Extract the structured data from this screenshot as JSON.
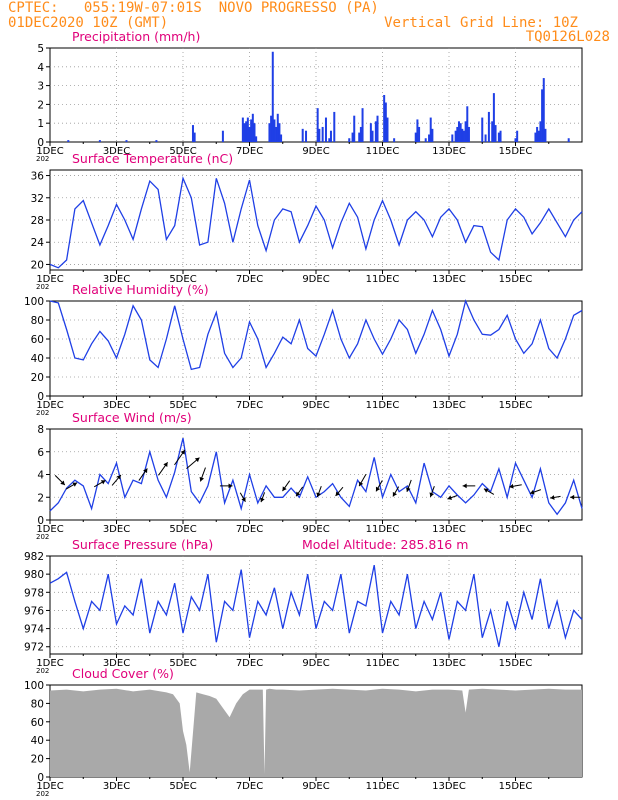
{
  "header": {
    "station": "CPTEC:   055:19W-07:01S  NOVO PROGRESSO (PA)",
    "datetime": "01DEC2020 10Z (GMT)",
    "grid_note": "Vertical Grid Line: 10Z",
    "code": "TQ0126L028"
  },
  "colors": {
    "header": "#ff8c1a",
    "panel_title": "#e0007a",
    "series": "#1f3fe6",
    "cloud": "#a9a9a9",
    "axis": "#000000",
    "grid": "#9a9a9a"
  },
  "x_axis": {
    "ticks": [
      "1DEC",
      "3DEC",
      "5DEC",
      "7DEC",
      "9DEC",
      "11DEC",
      "13DEC",
      "15DEC"
    ],
    "truncated_year": "202"
  },
  "chart_data": [
    {
      "id": "precip",
      "type": "bar",
      "title": "Precipitation  (mm/h)",
      "ylim": [
        0,
        5
      ],
      "yticks": [
        0,
        1,
        2,
        3,
        4,
        5
      ],
      "grid": true,
      "x_days": [
        0.55,
        1.5,
        2.3,
        3.2,
        4.3,
        4.35,
        5.2,
        5.8,
        5.85,
        5.9,
        5.95,
        6.0,
        6.05,
        6.1,
        6.15,
        6.2,
        6.6,
        6.65,
        6.7,
        6.75,
        6.8,
        6.85,
        6.9,
        6.95,
        7.6,
        7.7,
        8.05,
        8.1,
        8.2,
        8.3,
        8.4,
        8.45,
        8.55,
        9.0,
        9.1,
        9.15,
        9.3,
        9.35,
        9.4,
        9.65,
        9.7,
        9.8,
        9.85,
        10.05,
        10.1,
        10.15,
        10.35,
        11.0,
        11.05,
        11.1,
        11.3,
        11.4,
        11.45,
        11.5,
        12.1,
        12.2,
        12.25,
        12.3,
        12.35,
        12.4,
        12.45,
        12.5,
        12.55,
        12.6,
        13.0,
        13.1,
        13.2,
        13.3,
        13.35,
        13.4,
        13.5,
        13.55,
        14.0,
        14.05,
        14.6,
        14.65,
        14.7,
        14.75,
        14.8,
        14.85,
        14.9,
        15.6
      ],
      "values": [
        0.1,
        0.1,
        0.1,
        0.1,
        0.9,
        0.5,
        0.6,
        1.3,
        1.0,
        1.1,
        1.3,
        0.8,
        1.2,
        1.5,
        1.0,
        0.3,
        1.0,
        1.4,
        4.8,
        1.2,
        0.8,
        1.5,
        1.0,
        0.4,
        0.7,
        0.6,
        1.8,
        0.7,
        0.8,
        1.3,
        0.2,
        0.6,
        1.6,
        0.2,
        0.5,
        1.4,
        0.5,
        0.8,
        1.8,
        1.0,
        0.6,
        1.1,
        1.4,
        2.5,
        2.1,
        1.3,
        0.2,
        0.5,
        1.2,
        0.8,
        0.2,
        0.4,
        1.3,
        0.7,
        0.4,
        0.6,
        0.8,
        1.1,
        1.0,
        0.7,
        0.6,
        1.1,
        1.9,
        0.8,
        1.3,
        0.4,
        1.6,
        1.1,
        2.6,
        0.9,
        0.5,
        0.6,
        0.2,
        0.6,
        0.5,
        0.8,
        0.6,
        1.1,
        2.8,
        3.4,
        0.7,
        0.2
      ]
    },
    {
      "id": "temp",
      "type": "line",
      "title": "Surface Temperature (nC)",
      "ylim": [
        19,
        37
      ],
      "yticks": [
        20,
        24,
        28,
        32,
        36
      ],
      "grid": true,
      "x_days": [
        0,
        0.25,
        0.5,
        0.75,
        1.0,
        1.25,
        1.5,
        1.75,
        2.0,
        2.25,
        2.5,
        2.75,
        3.0,
        3.25,
        3.5,
        3.75,
        4.0,
        4.25,
        4.5,
        4.75,
        5.0,
        5.25,
        5.5,
        5.75,
        6.0,
        6.25,
        6.5,
        6.75,
        7.0,
        7.25,
        7.5,
        7.75,
        8.0,
        8.25,
        8.5,
        8.75,
        9.0,
        9.25,
        9.5,
        9.75,
        10.0,
        10.25,
        10.5,
        10.75,
        11.0,
        11.25,
        11.5,
        11.75,
        12.0,
        12.25,
        12.5,
        12.75,
        13.0,
        13.25,
        13.5,
        13.75,
        14.0,
        14.25,
        14.5,
        14.75,
        15.0,
        15.25,
        15.5,
        15.75,
        16.0
      ],
      "values": [
        20.0,
        19.4,
        20.8,
        30.0,
        31.5,
        27.5,
        23.5,
        27.0,
        30.8,
        28.0,
        24.5,
        30.0,
        35.0,
        33.5,
        24.5,
        27.0,
        35.5,
        32.0,
        23.5,
        24.0,
        35.5,
        31.0,
        24.0,
        30.0,
        35.2,
        27.0,
        22.5,
        28.0,
        30.0,
        29.5,
        24.0,
        27.0,
        30.5,
        28.0,
        23.0,
        27.5,
        31.0,
        28.5,
        22.8,
        28.0,
        31.5,
        28.0,
        23.5,
        28.0,
        29.5,
        28.0,
        25.0,
        28.5,
        30.0,
        28.0,
        24.0,
        27.0,
        26.8,
        22.2,
        20.8,
        28.0,
        30.0,
        28.5,
        25.5,
        27.5,
        30.0,
        27.5,
        25.0,
        28.0,
        29.5
      ]
    },
    {
      "id": "rh",
      "type": "line",
      "title": "Relative Humidity (%)",
      "ylim": [
        0,
        100
      ],
      "yticks": [
        0,
        20,
        40,
        60,
        80,
        100
      ],
      "grid": true,
      "x_days": [
        0,
        0.25,
        0.5,
        0.75,
        1.0,
        1.25,
        1.5,
        1.75,
        2.0,
        2.25,
        2.5,
        2.75,
        3.0,
        3.25,
        3.5,
        3.75,
        4.0,
        4.25,
        4.5,
        4.75,
        5.0,
        5.25,
        5.5,
        5.75,
        6.0,
        6.25,
        6.5,
        6.75,
        7.0,
        7.25,
        7.5,
        7.75,
        8.0,
        8.25,
        8.5,
        8.75,
        9.0,
        9.25,
        9.5,
        9.75,
        10.0,
        10.25,
        10.5,
        10.75,
        11.0,
        11.25,
        11.5,
        11.75,
        12.0,
        12.25,
        12.5,
        12.75,
        13.0,
        13.25,
        13.5,
        13.75,
        14.0,
        14.25,
        14.5,
        14.75,
        15.0,
        15.25,
        15.5,
        15.75,
        16.0
      ],
      "values": [
        100,
        98,
        70,
        40,
        38,
        55,
        68,
        58,
        40,
        65,
        95,
        80,
        38,
        30,
        60,
        95,
        60,
        28,
        30,
        65,
        88,
        45,
        30,
        40,
        78,
        60,
        30,
        45,
        62,
        55,
        80,
        50,
        42,
        65,
        90,
        60,
        40,
        55,
        80,
        60,
        44,
        60,
        80,
        70,
        45,
        65,
        90,
        70,
        42,
        65,
        100,
        80,
        65,
        64,
        70,
        85,
        60,
        45,
        55,
        80,
        50,
        40,
        60,
        85,
        90
      ]
    },
    {
      "id": "wind",
      "type": "line",
      "title": "Surface Wind (m/s)",
      "ylim": [
        0,
        8
      ],
      "yticks": [
        0,
        2,
        4,
        6,
        8
      ],
      "grid": true,
      "x_days": [
        0,
        0.25,
        0.5,
        0.75,
        1.0,
        1.25,
        1.5,
        1.75,
        2.0,
        2.25,
        2.5,
        2.75,
        3.0,
        3.25,
        3.5,
        3.75,
        4.0,
        4.25,
        4.5,
        4.75,
        5.0,
        5.25,
        5.5,
        5.75,
        6.0,
        6.25,
        6.5,
        6.75,
        7.0,
        7.25,
        7.5,
        7.75,
        8.0,
        8.25,
        8.5,
        8.75,
        9.0,
        9.25,
        9.5,
        9.75,
        10.0,
        10.25,
        10.5,
        10.75,
        11.0,
        11.25,
        11.5,
        11.75,
        12.0,
        12.25,
        12.5,
        12.75,
        13.0,
        13.25,
        13.5,
        13.75,
        14.0,
        14.25,
        14.5,
        14.75,
        15.0,
        15.25,
        15.5,
        15.75,
        16.0
      ],
      "values": [
        0.8,
        1.5,
        2.8,
        3.5,
        3.0,
        1.0,
        4.0,
        3.2,
        5.0,
        2.0,
        3.5,
        3.2,
        6.0,
        3.5,
        2.0,
        4.2,
        7.2,
        2.5,
        1.5,
        3.0,
        6.0,
        1.5,
        3.5,
        1.0,
        4.0,
        1.5,
        3.0,
        2.0,
        2.0,
        2.8,
        2.0,
        3.8,
        2.0,
        2.5,
        3.2,
        2.0,
        1.2,
        3.5,
        2.5,
        5.5,
        2.0,
        4.0,
        2.5,
        3.0,
        1.5,
        5.0,
        2.5,
        2.0,
        3.0,
        2.2,
        1.5,
        2.2,
        3.2,
        2.5,
        4.5,
        2.0,
        5.0,
        3.5,
        2.0,
        4.5,
        1.5,
        0.5,
        1.5,
        3.5,
        1.0
      ],
      "arrows": [
        {
          "day": 0.3,
          "speed": 3.5,
          "dir": 135
        },
        {
          "day": 0.65,
          "speed": 3.0,
          "dir": 60
        },
        {
          "day": 1.5,
          "speed": 3.2,
          "dir": 60
        },
        {
          "day": 2.0,
          "speed": 3.5,
          "dir": 40
        },
        {
          "day": 2.8,
          "speed": 4.0,
          "dir": 35
        },
        {
          "day": 3.4,
          "speed": 4.5,
          "dir": 35
        },
        {
          "day": 3.9,
          "speed": 5.5,
          "dir": 35
        },
        {
          "day": 4.3,
          "speed": 5.0,
          "dir": 50
        },
        {
          "day": 4.6,
          "speed": 4.0,
          "dir": 200
        },
        {
          "day": 5.3,
          "speed": 3.0,
          "dir": 90
        },
        {
          "day": 5.8,
          "speed": 2.0,
          "dir": 150
        },
        {
          "day": 6.4,
          "speed": 2.0,
          "dir": 200
        },
        {
          "day": 7.1,
          "speed": 3.0,
          "dir": 215
        },
        {
          "day": 7.5,
          "speed": 2.5,
          "dir": 215
        },
        {
          "day": 8.1,
          "speed": 2.5,
          "dir": 200
        },
        {
          "day": 8.7,
          "speed": 2.5,
          "dir": 220
        },
        {
          "day": 9.4,
          "speed": 3.5,
          "dir": 210
        },
        {
          "day": 9.9,
          "speed": 3.0,
          "dir": 210
        },
        {
          "day": 10.4,
          "speed": 2.5,
          "dir": 210
        },
        {
          "day": 10.8,
          "speed": 3.0,
          "dir": 200
        },
        {
          "day": 11.5,
          "speed": 2.5,
          "dir": 200
        },
        {
          "day": 12.1,
          "speed": 2.0,
          "dir": 250
        },
        {
          "day": 12.6,
          "speed": 3.0,
          "dir": 270
        },
        {
          "day": 13.2,
          "speed": 2.5,
          "dir": 300
        },
        {
          "day": 14.0,
          "speed": 3.0,
          "dir": 260
        },
        {
          "day": 14.6,
          "speed": 2.5,
          "dir": 250
        },
        {
          "day": 15.2,
          "speed": 2.0,
          "dir": 260
        },
        {
          "day": 15.8,
          "speed": 2.0,
          "dir": 270
        }
      ]
    },
    {
      "id": "pres",
      "type": "line",
      "title": "Surface Pressure (hPa)",
      "annotation": "Model Altitude: 285.816  m",
      "ylim": [
        971.2,
        982
      ],
      "yticks": [
        972,
        974,
        976,
        978,
        980,
        982
      ],
      "grid": true,
      "x_days": [
        0,
        0.25,
        0.5,
        0.75,
        1.0,
        1.25,
        1.5,
        1.75,
        2.0,
        2.25,
        2.5,
        2.75,
        3.0,
        3.25,
        3.5,
        3.75,
        4.0,
        4.25,
        4.5,
        4.75,
        5.0,
        5.25,
        5.5,
        5.75,
        6.0,
        6.25,
        6.5,
        6.75,
        7.0,
        7.25,
        7.5,
        7.75,
        8.0,
        8.25,
        8.5,
        8.75,
        9.0,
        9.25,
        9.5,
        9.75,
        10.0,
        10.25,
        10.5,
        10.75,
        11.0,
        11.25,
        11.5,
        11.75,
        12.0,
        12.25,
        12.5,
        12.75,
        13.0,
        13.25,
        13.5,
        13.75,
        14.0,
        14.25,
        14.5,
        14.75,
        15.0,
        15.25,
        15.5,
        15.75,
        16.0
      ],
      "values": [
        979.0,
        979.5,
        980.2,
        977.0,
        974.0,
        977.0,
        976.0,
        980.0,
        974.5,
        976.5,
        975.5,
        979.5,
        973.5,
        977.0,
        975.5,
        979.0,
        973.5,
        977.5,
        976.0,
        980.0,
        972.5,
        977.0,
        976.0,
        980.5,
        973.0,
        977.0,
        975.5,
        978.5,
        974.0,
        978.0,
        975.5,
        980.0,
        974.0,
        977.0,
        976.0,
        980.0,
        973.5,
        977.0,
        976.5,
        981.0,
        973.5,
        977.0,
        975.5,
        980.0,
        974.0,
        977.0,
        975.0,
        978.0,
        972.8,
        977.0,
        976.0,
        980.0,
        973.0,
        976.0,
        972.0,
        977.0,
        974.0,
        978.0,
        975.0,
        979.5,
        974.0,
        977.0,
        973.0,
        976.0,
        975.0
      ]
    },
    {
      "id": "cloud",
      "type": "area",
      "title": "Cloud Cover (%)",
      "ylim": [
        0,
        100
      ],
      "yticks": [
        0,
        20,
        40,
        60,
        80,
        100
      ],
      "grid": false,
      "x_days": [
        0,
        0.5,
        1.0,
        1.5,
        2.0,
        2.5,
        3.0,
        3.5,
        3.7,
        3.9,
        4.0,
        4.1,
        4.2,
        4.4,
        4.6,
        4.8,
        5.0,
        5.2,
        5.4,
        5.6,
        5.8,
        6.0,
        6.2,
        6.4,
        6.45,
        6.5,
        6.6,
        6.8,
        7.0,
        7.5,
        8.0,
        8.5,
        9.0,
        9.5,
        10.0,
        10.5,
        11.0,
        11.5,
        12.0,
        12.4,
        12.5,
        12.6,
        13.0,
        13.5,
        14.0,
        14.5,
        15.0,
        15.5,
        16.0
      ],
      "values": [
        94,
        95,
        93,
        95,
        96,
        93,
        95,
        92,
        90,
        80,
        50,
        35,
        5,
        92,
        90,
        88,
        85,
        75,
        65,
        80,
        90,
        95,
        95,
        95,
        3,
        95,
        96,
        95,
        95,
        94,
        95,
        96,
        95,
        94,
        96,
        95,
        93,
        95,
        95,
        94,
        70,
        95,
        96,
        95,
        94,
        95,
        96,
        95,
        95
      ]
    }
  ]
}
